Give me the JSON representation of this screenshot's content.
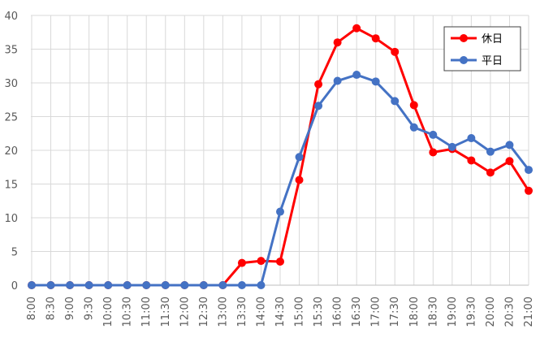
{
  "chart_data": {
    "type": "line",
    "categories": [
      "8:00",
      "8:30",
      "9:00",
      "9:30",
      "10:00",
      "10:30",
      "11:00",
      "11:30",
      "12:00",
      "12:30",
      "13:00",
      "13:30",
      "14:00",
      "14:30",
      "15:00",
      "15:30",
      "16:00",
      "16:30",
      "17:00",
      "17:30",
      "18:00",
      "18:30",
      "19:00",
      "19:30",
      "20:00",
      "20:30",
      "21:00"
    ],
    "series": [
      {
        "name": "休日",
        "color": "#ff0000",
        "values": [
          0,
          0,
          0,
          0,
          0,
          0,
          0,
          0,
          0,
          0,
          0,
          3.3,
          3.6,
          3.5,
          15.6,
          29.8,
          36,
          38.1,
          36.6,
          34.6,
          26.7,
          19.7,
          20.2,
          18.5,
          16.7,
          18.4,
          14
        ]
      },
      {
        "name": "平日",
        "color": "#4472c4",
        "values": [
          0,
          0,
          0,
          0,
          0,
          0,
          0,
          0,
          0,
          0,
          0,
          0,
          0,
          10.9,
          19,
          26.6,
          30.3,
          31.2,
          30.2,
          27.3,
          23.4,
          22.3,
          20.5,
          21.8,
          19.8,
          20.8,
          17.1
        ]
      }
    ],
    "ylim": [
      0,
      40
    ],
    "yticks": [
      0,
      5,
      10,
      15,
      20,
      25,
      30,
      35,
      40
    ],
    "grid": true,
    "legend": "top-right"
  }
}
